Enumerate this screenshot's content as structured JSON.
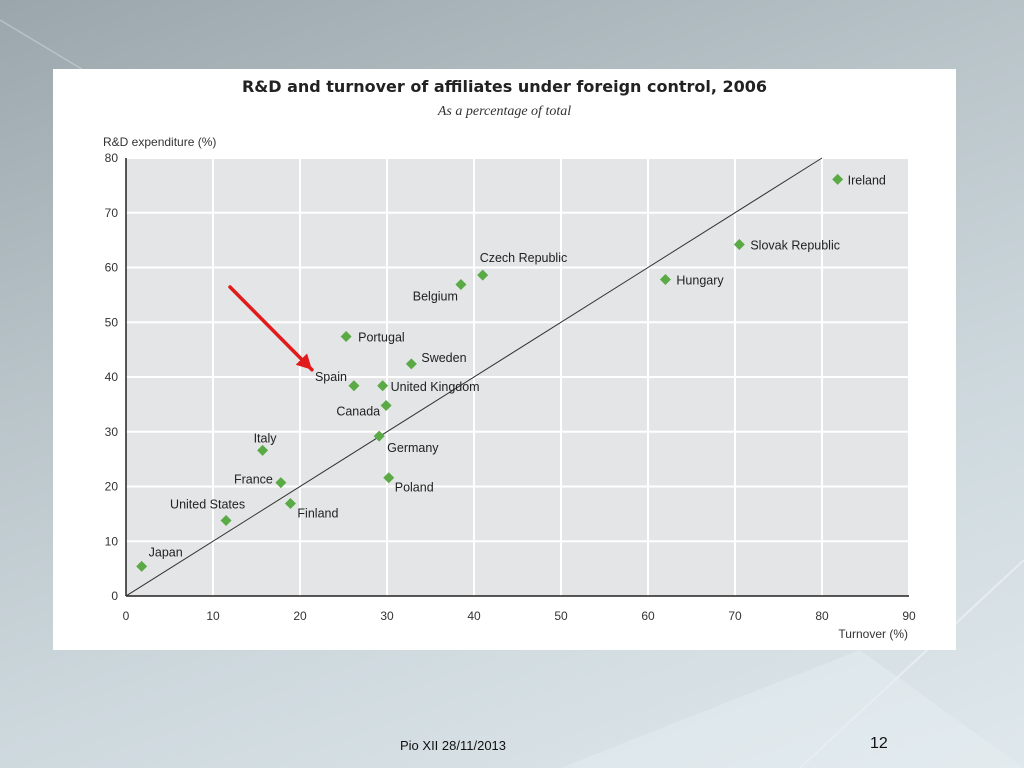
{
  "slide": {
    "footer": "Pio XII 28/11/2013",
    "page_number": "12"
  },
  "chart_data": {
    "type": "scatter",
    "title": "R&D and turnover of affiliates under foreign control, 2006",
    "subtitle": "As a percentage of total",
    "xlabel": "Turnover (%)",
    "ylabel": "R&D expenditure (%)",
    "xlim": [
      0,
      90
    ],
    "ylim": [
      0,
      80
    ],
    "xticks": [
      0,
      10,
      20,
      30,
      40,
      50,
      60,
      70,
      80,
      90
    ],
    "yticks": [
      0,
      10,
      20,
      30,
      40,
      50,
      60,
      70,
      80
    ],
    "grid": true,
    "reference_line": [
      [
        0,
        0
      ],
      [
        80,
        80
      ]
    ],
    "marker_color": "#5aaa46",
    "points": [
      {
        "label": "Ireland",
        "x": 81.8,
        "y": 76.1
      },
      {
        "label": "Slovak Republic",
        "x": 70.5,
        "y": 64.2
      },
      {
        "label": "Hungary",
        "x": 62.0,
        "y": 57.8
      },
      {
        "label": "Czech Republic",
        "x": 41.0,
        "y": 58.6
      },
      {
        "label": "Belgium",
        "x": 38.5,
        "y": 56.9
      },
      {
        "label": "Portugal",
        "x": 25.3,
        "y": 47.4
      },
      {
        "label": "Sweden",
        "x": 32.8,
        "y": 42.4
      },
      {
        "label": "Spain",
        "x": 26.2,
        "y": 38.4
      },
      {
        "label": "United Kingdom",
        "x": 29.5,
        "y": 38.4
      },
      {
        "label": "Canada",
        "x": 29.9,
        "y": 34.8
      },
      {
        "label": "Germany",
        "x": 29.1,
        "y": 29.2
      },
      {
        "label": "Italy",
        "x": 15.7,
        "y": 26.6
      },
      {
        "label": "Poland",
        "x": 30.2,
        "y": 21.6
      },
      {
        "label": "France",
        "x": 17.8,
        "y": 20.7
      },
      {
        "label": "Finland",
        "x": 18.9,
        "y": 16.9
      },
      {
        "label": "United States",
        "x": 11.5,
        "y": 13.8
      },
      {
        "label": "Japan",
        "x": 1.8,
        "y": 5.4
      }
    ],
    "annotations": [
      {
        "type": "arrow",
        "color": "#e11b1b",
        "points_to": "Spain"
      }
    ]
  }
}
